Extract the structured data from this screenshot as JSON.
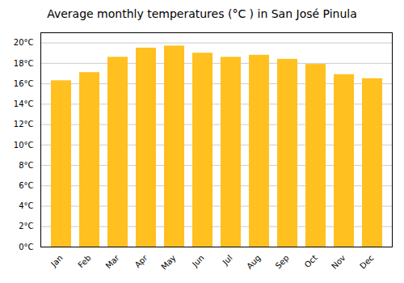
{
  "chart_data": {
    "type": "bar",
    "title": "Average monthly temperatures (°C ) in San José Pinula",
    "categories": [
      "Jan",
      "Feb",
      "Mar",
      "Apr",
      "May",
      "Jun",
      "Jul",
      "Aug",
      "Sep",
      "Oct",
      "Nov",
      "Dec"
    ],
    "values": [
      16.3,
      17.1,
      18.6,
      19.5,
      19.7,
      19.0,
      18.6,
      18.8,
      18.4,
      17.9,
      16.9,
      16.5
    ],
    "color": "#FFC020",
    "ylim": [
      0,
      21
    ],
    "yticks": [
      {
        "value": 0,
        "label": "0°C"
      },
      {
        "value": 2,
        "label": "2°C"
      },
      {
        "value": 4,
        "label": "4°C"
      },
      {
        "value": 6,
        "label": "6°C"
      },
      {
        "value": 8,
        "label": "8°C"
      },
      {
        "value": 10,
        "label": "10°C"
      },
      {
        "value": 12,
        "label": "12°C"
      },
      {
        "value": 14,
        "label": "14°C"
      },
      {
        "value": 16,
        "label": "16°C"
      },
      {
        "value": 18,
        "label": "18°C"
      },
      {
        "value": 20,
        "label": "20°C"
      }
    ],
    "grid": true
  }
}
